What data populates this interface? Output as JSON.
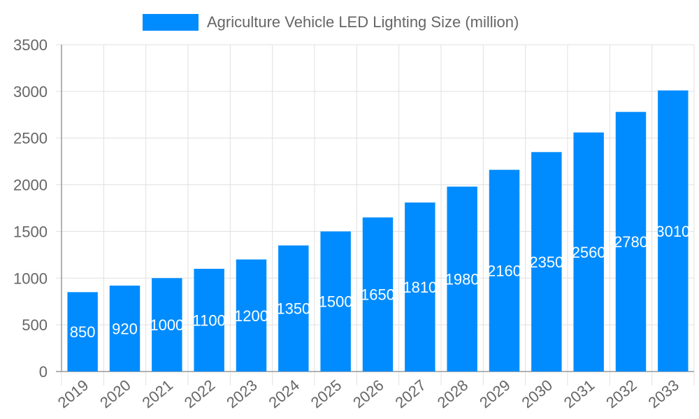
{
  "chart_data": {
    "type": "bar",
    "title": "",
    "xlabel": "",
    "ylabel": "",
    "legend": {
      "position": "top",
      "entries": [
        "Agriculture Vehicle LED Lighting Size (million)"
      ]
    },
    "categories": [
      "2019",
      "2020",
      "2021",
      "2022",
      "2023",
      "2024",
      "2025",
      "2026",
      "2027",
      "2028",
      "2029",
      "2030",
      "2031",
      "2032",
      "2033"
    ],
    "series": [
      {
        "name": "Agriculture Vehicle LED Lighting Size (million)",
        "values": [
          850,
          920,
          1000,
          1100,
          1200,
          1350,
          1500,
          1650,
          1810,
          1980,
          2160,
          2350,
          2560,
          2780,
          3010
        ],
        "color": "#008cff"
      }
    ],
    "ylim": [
      0,
      3500
    ],
    "yticks": [
      0,
      500,
      1000,
      1500,
      2000,
      2500,
      3000,
      3500
    ],
    "grid": true,
    "data_labels": true
  }
}
